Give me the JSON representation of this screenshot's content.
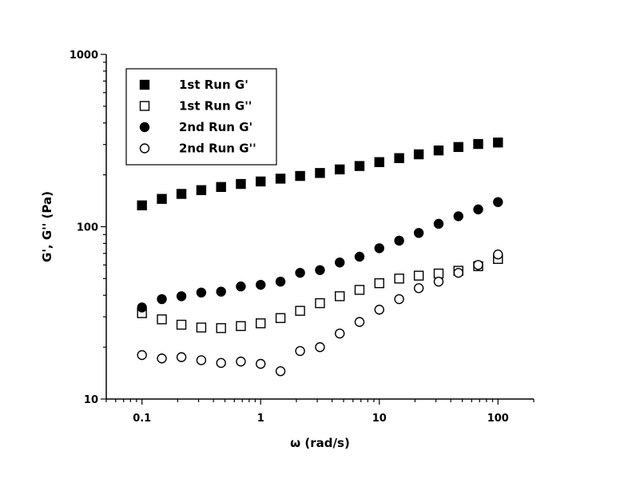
{
  "chart_data": {
    "type": "scatter",
    "xlabel": "ω (rad/s)",
    "ylabel": "G', G'' (Pa)",
    "xscale": "log",
    "yscale": "log",
    "xlim": [
      0.05,
      200
    ],
    "ylim": [
      10,
      1000
    ],
    "xticks": [
      0.1,
      1,
      10,
      100
    ],
    "xtick_labels": [
      "0.1",
      "1",
      "10",
      "100"
    ],
    "yticks": [
      10,
      100,
      1000
    ],
    "ytick_labels": [
      "10",
      "100",
      "1000"
    ],
    "grid": false,
    "legend_position": "top-left",
    "x": [
      0.1,
      0.147,
      0.215,
      0.316,
      0.464,
      0.681,
      1,
      1.47,
      2.15,
      3.16,
      4.64,
      6.81,
      10,
      14.7,
      21.5,
      31.6,
      46.4,
      68.1,
      100
    ],
    "series": [
      {
        "name": "1st Run G'",
        "marker": "filled-square",
        "values": [
          133,
          145,
          155,
          163,
          170,
          177,
          183,
          190,
          197,
          205,
          215,
          225,
          237,
          250,
          263,
          277,
          290,
          302,
          308
        ]
      },
      {
        "name": "1st Run G''",
        "marker": "open-square",
        "values": [
          31.5,
          29,
          27,
          26,
          25.8,
          26.5,
          27.5,
          29.5,
          32.5,
          36,
          39.5,
          43,
          47,
          50,
          52,
          53.5,
          55.5,
          59,
          65
        ]
      },
      {
        "name": "2nd Run G'",
        "marker": "filled-circle",
        "values": [
          34,
          38,
          39.5,
          41.5,
          42,
          45,
          46,
          48,
          54,
          56,
          62,
          67,
          75,
          83,
          92,
          104,
          115,
          126,
          139
        ]
      },
      {
        "name": "2nd Run G''",
        "marker": "open-circle",
        "values": [
          18,
          17.2,
          17.5,
          16.8,
          16.2,
          16.5,
          16,
          14.5,
          19,
          20,
          24,
          28,
          33,
          38,
          44,
          48,
          54,
          60,
          69
        ]
      }
    ]
  }
}
